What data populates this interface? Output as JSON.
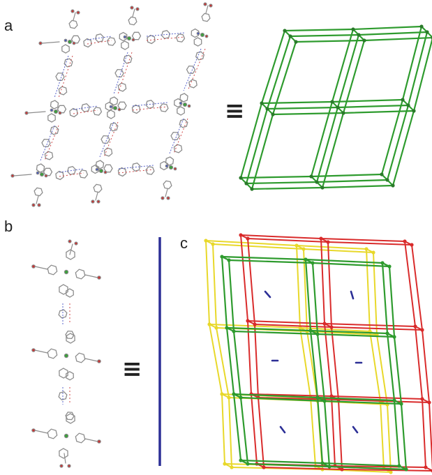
{
  "panels": {
    "a": {
      "label": "a",
      "equiv_symbol": "≡",
      "net_color": "#2e9b2e"
    },
    "b": {
      "label": "b",
      "equiv_symbol": "≡",
      "rod_color": "#2c2f96"
    },
    "c": {
      "label": "c",
      "net_colors": [
        "#e8d82a",
        "#2e9b2e",
        "#d92b2b"
      ],
      "rod_color": "#2c2f96"
    }
  },
  "icons": {
    "molecular_structure": "ball-and-stick-crystal-structure",
    "topology_net": "sql-net-icon"
  }
}
